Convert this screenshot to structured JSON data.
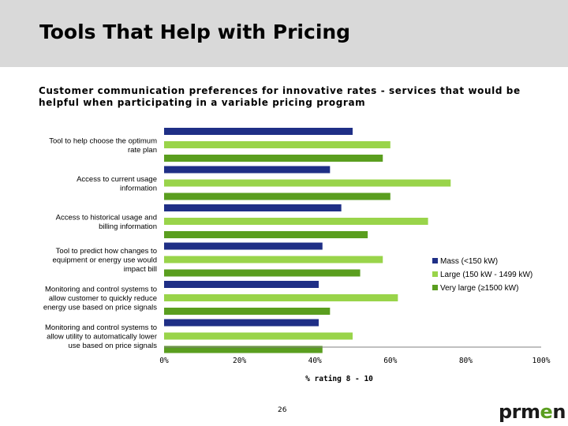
{
  "slide": {
    "title": "Tools That Help with Pricing",
    "subtitle": "Customer communication preferences for innovative rates - services that would be helpful when participating in a variable pricing program",
    "page_number": "26",
    "logo": {
      "part1": "prm",
      "part2": "e",
      "part3": "n"
    }
  },
  "chart_data": {
    "type": "bar",
    "orientation": "horizontal",
    "categories": [
      [
        "Tool to help choose the optimum",
        "rate plan"
      ],
      [
        "Access to current usage",
        "information"
      ],
      [
        "Access to historical usage and",
        "billing information"
      ],
      [
        "Tool to predict how changes to",
        "equipment or energy use would",
        "impact bill"
      ],
      [
        "Monitoring and control systems to",
        "allow customer to quickly reduce",
        "energy use based on price signals"
      ],
      [
        "Monitoring and control systems to",
        "allow utility to automatically lower",
        "use based on price signals"
      ]
    ],
    "series": [
      {
        "name": "Mass (<150 kW)",
        "color": "#1f2f86",
        "values": [
          50,
          44,
          47,
          42,
          41,
          41
        ]
      },
      {
        "name": "Large (150 kW - 1499 kW)",
        "color": "#99d44a",
        "values": [
          60,
          76,
          70,
          58,
          62,
          50
        ]
      },
      {
        "name": "Very large (≥1500 kW)",
        "color": "#5a9e1f",
        "values": [
          58,
          60,
          54,
          52,
          44,
          42
        ]
      }
    ],
    "xlim": [
      0,
      100
    ],
    "xticks": [
      "0%",
      "20%",
      "40%",
      "60%",
      "80%",
      "100%"
    ],
    "xlabel": "% rating 8 - 10",
    "legend_position": "right"
  }
}
